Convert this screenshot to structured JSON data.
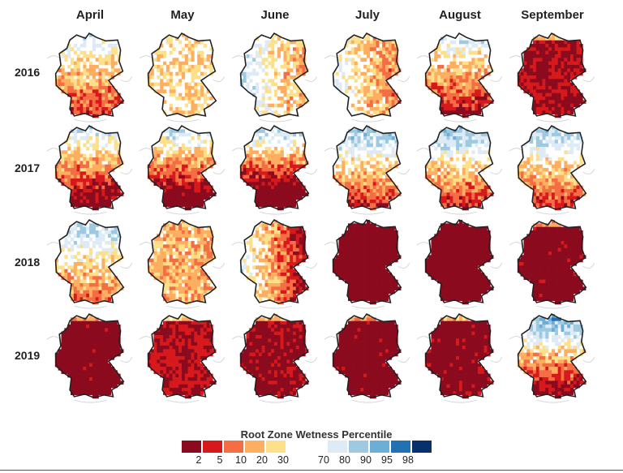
{
  "months": [
    "April",
    "May",
    "June",
    "July",
    "August",
    "September"
  ],
  "years": [
    "2016",
    "2017",
    "2018",
    "2019"
  ],
  "legend": {
    "title": "Root Zone Wetness Percentile",
    "dry_bins": [
      {
        "label": "2",
        "color": "#8b0a1e"
      },
      {
        "label": "5",
        "color": "#d7191c"
      },
      {
        "label": "10",
        "color": "#f46d43"
      },
      {
        "label": "20",
        "color": "#fdae61"
      },
      {
        "label": "30",
        "color": "#fee08b"
      }
    ],
    "wet_bins": [
      {
        "label": "70",
        "color": "#deebf7"
      },
      {
        "label": "80",
        "color": "#9ecae1"
      },
      {
        "label": "90",
        "color": "#6baed6"
      },
      {
        "label": "95",
        "color": "#2171b5"
      },
      {
        "label": "98",
        "color": "#08306b"
      }
    ]
  },
  "panels": [
    {
      "year": "2016",
      "month": "April",
      "pattern": "south-dry",
      "level": 0.45
    },
    {
      "year": "2016",
      "month": "May",
      "pattern": "mixed-light",
      "level": 0.2
    },
    {
      "year": "2016",
      "month": "June",
      "pattern": "east-dry-west-wet",
      "level": 0.4
    },
    {
      "year": "2016",
      "month": "July",
      "pattern": "east-dry",
      "level": 0.35
    },
    {
      "year": "2016",
      "month": "August",
      "pattern": "south-dry",
      "level": 0.55
    },
    {
      "year": "2016",
      "month": "September",
      "pattern": "widespread",
      "level": 0.8
    },
    {
      "year": "2017",
      "month": "April",
      "pattern": "south-dry",
      "level": 0.7
    },
    {
      "year": "2017",
      "month": "May",
      "pattern": "south-dry",
      "level": 0.8
    },
    {
      "year": "2017",
      "month": "June",
      "pattern": "south-dry",
      "level": 0.95
    },
    {
      "year": "2017",
      "month": "July",
      "pattern": "north-wet-south-dry",
      "level": 0.6
    },
    {
      "year": "2017",
      "month": "August",
      "pattern": "north-wet-south-dry",
      "level": 0.6
    },
    {
      "year": "2017",
      "month": "September",
      "pattern": "north-wet-south-dry",
      "level": 0.55
    },
    {
      "year": "2018",
      "month": "April",
      "pattern": "north-wet-south-dry",
      "level": 0.35
    },
    {
      "year": "2018",
      "month": "May",
      "pattern": "mixed",
      "level": 0.55
    },
    {
      "year": "2018",
      "month": "June",
      "pattern": "east-dry",
      "level": 0.65
    },
    {
      "year": "2018",
      "month": "July",
      "pattern": "widespread",
      "level": 0.97
    },
    {
      "year": "2018",
      "month": "August",
      "pattern": "widespread",
      "level": 0.99
    },
    {
      "year": "2018",
      "month": "September",
      "pattern": "widespread",
      "level": 0.9
    },
    {
      "year": "2019",
      "month": "April",
      "pattern": "widespread",
      "level": 0.9
    },
    {
      "year": "2019",
      "month": "May",
      "pattern": "widespread",
      "level": 0.75
    },
    {
      "year": "2019",
      "month": "June",
      "pattern": "widespread",
      "level": 0.85
    },
    {
      "year": "2019",
      "month": "July",
      "pattern": "widespread",
      "level": 0.9
    },
    {
      "year": "2019",
      "month": "August",
      "pattern": "widespread",
      "level": 0.88
    },
    {
      "year": "2019",
      "month": "September",
      "pattern": "north-wet-south-dry",
      "level": 0.8
    }
  ]
}
